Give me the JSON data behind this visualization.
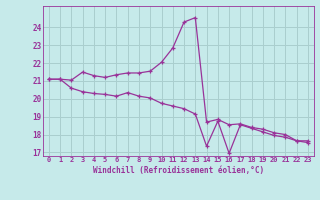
{
  "xlabel": "Windchill (Refroidissement éolien,°C)",
  "bg_color": "#c6eaea",
  "line_color": "#993399",
  "grid_color": "#aacece",
  "xlim": [
    -0.5,
    23.5
  ],
  "ylim": [
    16.8,
    25.2
  ],
  "yticks": [
    17,
    18,
    19,
    20,
    21,
    22,
    23,
    24
  ],
  "xticks": [
    0,
    1,
    2,
    3,
    4,
    5,
    6,
    7,
    8,
    9,
    10,
    11,
    12,
    13,
    14,
    15,
    16,
    17,
    18,
    19,
    20,
    21,
    22,
    23
  ],
  "line1_x": [
    0,
    1,
    2,
    3,
    4,
    5,
    6,
    7,
    8,
    9,
    10,
    11,
    12,
    13,
    14,
    15,
    16,
    17,
    18,
    19,
    20,
    21,
    22,
    23
  ],
  "line1_y": [
    21.1,
    21.1,
    21.05,
    21.5,
    21.3,
    21.2,
    21.35,
    21.45,
    21.45,
    21.55,
    22.05,
    22.85,
    24.3,
    24.55,
    18.7,
    18.85,
    18.55,
    18.6,
    18.4,
    18.3,
    18.1,
    18.0,
    17.65,
    17.65
  ],
  "line2_x": [
    0,
    1,
    2,
    3,
    4,
    5,
    6,
    7,
    8,
    9,
    10,
    11,
    12,
    13,
    14,
    15,
    16,
    17,
    18,
    19,
    20,
    21,
    22,
    23
  ],
  "line2_y": [
    21.1,
    21.1,
    20.6,
    20.4,
    20.3,
    20.25,
    20.15,
    20.35,
    20.15,
    20.05,
    19.75,
    19.6,
    19.45,
    19.15,
    17.35,
    18.75,
    16.95,
    18.55,
    18.35,
    18.15,
    17.95,
    17.85,
    17.65,
    17.55
  ]
}
